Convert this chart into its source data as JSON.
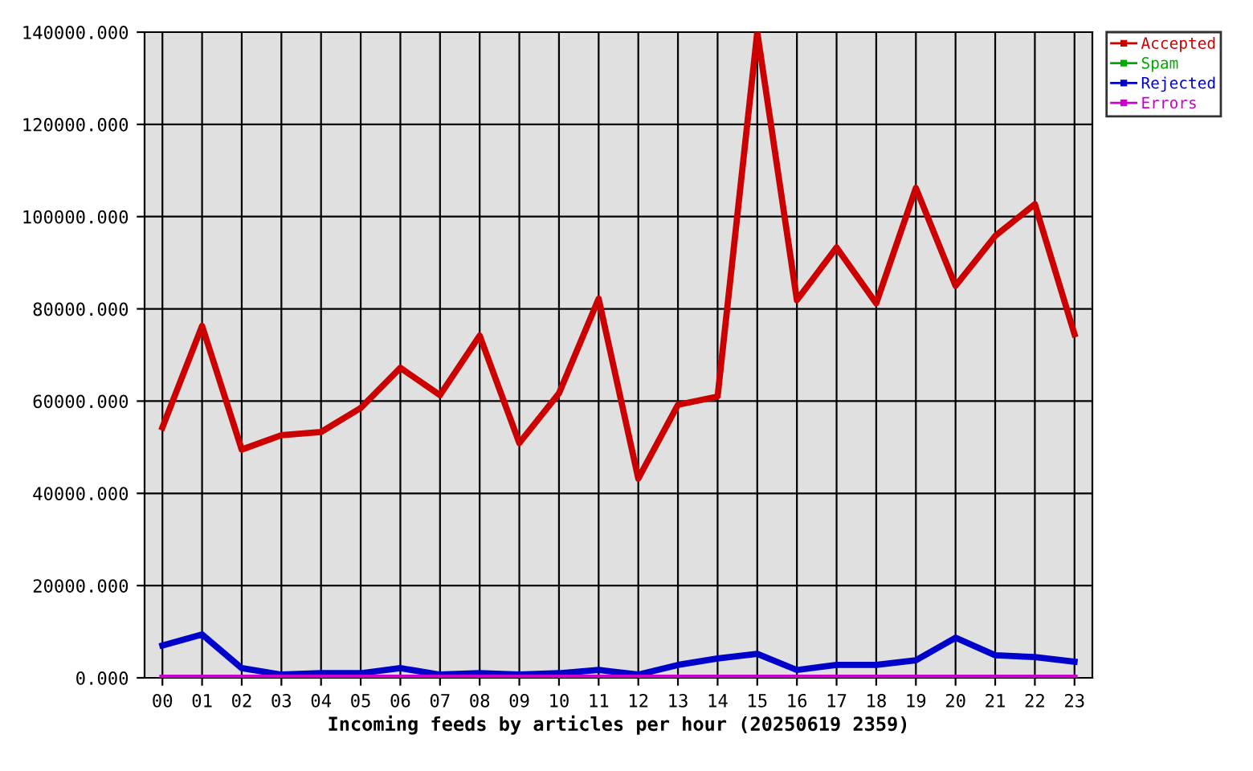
{
  "chart_data": {
    "type": "line",
    "xlabel": "Incoming feeds by articles per hour (20250619 2359)",
    "categories": [
      "00",
      "01",
      "02",
      "03",
      "04",
      "05",
      "06",
      "07",
      "08",
      "09",
      "10",
      "11",
      "12",
      "13",
      "14",
      "15",
      "16",
      "17",
      "18",
      "19",
      "20",
      "21",
      "22",
      "23"
    ],
    "series": [
      {
        "name": "Accepted",
        "color": "#cc0000",
        "values": [
          54300,
          76300,
          49500,
          52600,
          53300,
          58500,
          67200,
          61300,
          74200,
          50900,
          61700,
          82200,
          43200,
          59200,
          61000,
          140000,
          81900,
          93300,
          81200,
          106200,
          85000,
          95800,
          102700,
          74500
        ]
      },
      {
        "name": "Spam",
        "color": "#00aa00",
        "values": [
          null,
          null,
          null,
          null,
          null,
          null,
          null,
          null,
          null,
          null,
          null,
          null,
          null,
          null,
          null,
          null,
          null,
          null,
          null,
          null,
          null,
          null,
          null,
          null
        ]
      },
      {
        "name": "Rejected",
        "color": "#0000cc",
        "values": [
          7000,
          9400,
          2100,
          700,
          1000,
          1000,
          2100,
          700,
          1000,
          700,
          1000,
          1700,
          700,
          2800,
          4200,
          5200,
          1700,
          2800,
          2800,
          3800,
          8700,
          4900,
          4500,
          3500
        ]
      },
      {
        "name": "Errors",
        "color": "#cc00cc",
        "values": [
          0,
          0,
          0,
          0,
          0,
          0,
          0,
          0,
          0,
          0,
          0,
          0,
          0,
          0,
          0,
          0,
          0,
          0,
          0,
          0,
          0,
          0,
          0,
          0
        ]
      }
    ],
    "ylim": [
      0,
      140000
    ],
    "yticks": [
      {
        "value": 0,
        "label": "0.000"
      },
      {
        "value": 20000,
        "label": "20000.000"
      },
      {
        "value": 40000,
        "label": "40000.000"
      },
      {
        "value": 60000,
        "label": "60000.000"
      },
      {
        "value": 80000,
        "label": "80000.000"
      },
      {
        "value": 100000,
        "label": "100000.000"
      },
      {
        "value": 120000,
        "label": "120000.000"
      },
      {
        "value": 140000,
        "label": "140000.000"
      }
    ],
    "grid": true,
    "legend": "top right",
    "marker": "none",
    "line_style": "solid"
  }
}
